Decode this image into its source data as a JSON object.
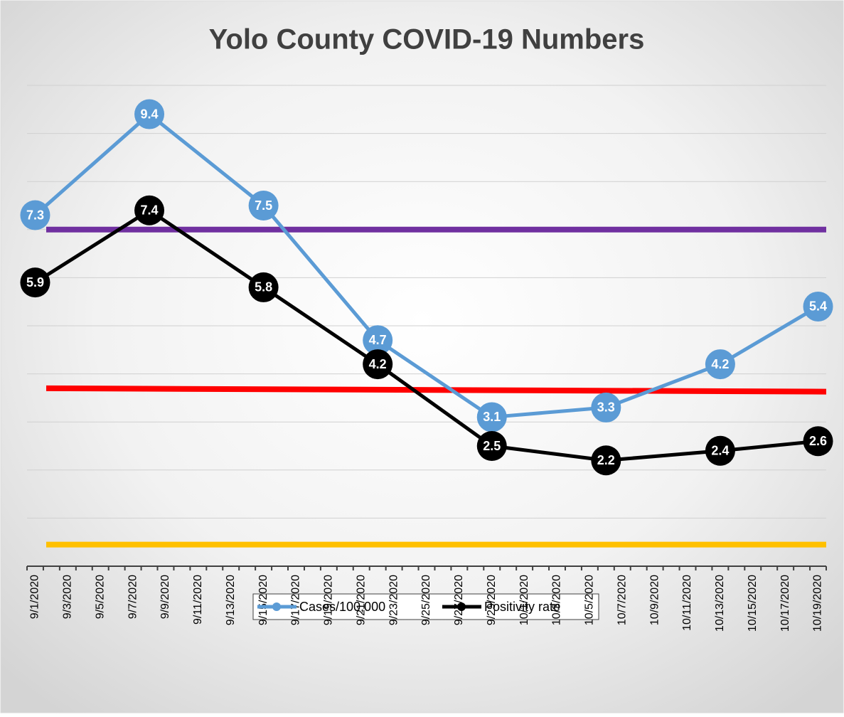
{
  "chart_data": {
    "type": "line",
    "title": "Yolo County COVID-19 Numbers",
    "categories": [
      "9/1/2020",
      null,
      "9/3/2020",
      null,
      "9/5/2020",
      null,
      "9/7/2020",
      null,
      "9/9/2020",
      null,
      "9/11/2020",
      null,
      "9/13/2020",
      null,
      "9/15/2020",
      null,
      "9/17/2020",
      null,
      "9/19/2020",
      null,
      "9/21/2020",
      null,
      "9/23/2020",
      null,
      "9/25/2020",
      null,
      "9/27/2020",
      null,
      "9/29/2020",
      null,
      "10/1/2020",
      null,
      "10/3/2020",
      null,
      "10/5/2020",
      null,
      "10/7/2020",
      null,
      "10/9/2020",
      null,
      "10/11/2020",
      null,
      "10/13/2020",
      null,
      "10/15/2020",
      null,
      "10/17/2020",
      null,
      "10/19/2020"
    ],
    "series": [
      {
        "name": "Cases/100,000",
        "color": "#5b9bd5",
        "x": [
          "9/1/2020",
          "9/8/2020",
          "9/15/2020",
          "9/22/2020",
          "9/29/2020",
          "10/6/2020",
          "10/13/2020",
          "10/19/2020"
        ],
        "values": [
          7.3,
          9.4,
          7.5,
          4.7,
          3.1,
          3.3,
          4.2,
          5.4
        ]
      },
      {
        "name": "Positivity rate",
        "color": "#000000",
        "x": [
          "9/1/2020",
          "9/8/2020",
          "9/15/2020",
          "9/22/2020",
          "9/29/2020",
          "10/6/2020",
          "10/13/2020",
          "10/19/2020"
        ],
        "values": [
          5.9,
          7.4,
          5.8,
          4.2,
          2.5,
          2.2,
          2.4,
          2.6
        ]
      }
    ],
    "reference_lines": [
      {
        "color": "#7030a0",
        "values": [
          7,
          7
        ]
      },
      {
        "color": "#ff0000",
        "values": [
          3.7,
          3.63
        ]
      },
      {
        "color": "#ffc000",
        "values": [
          0.45,
          0.45
        ]
      }
    ],
    "ylim": [
      0,
      10
    ],
    "yticks": [
      1,
      2,
      3,
      4,
      5,
      6,
      7,
      8,
      9,
      10
    ],
    "grid": true,
    "legend": "bottom"
  }
}
